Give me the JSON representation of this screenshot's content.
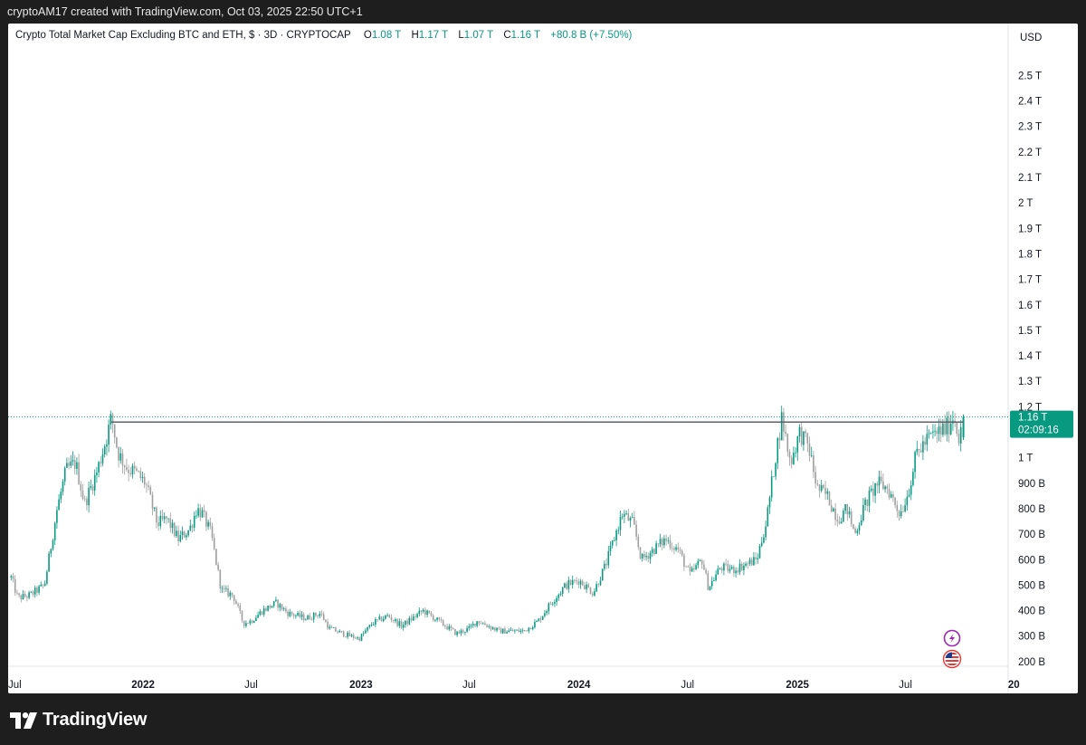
{
  "header": {
    "caption": "cryptoAM17 created with TradingView.com, Oct 03, 2025 22:50 UTC+1"
  },
  "legend": {
    "title": "Crypto Total Market Cap Excluding BTC and ETH, $ · 3D · CRYPTOCAP",
    "o_label": "O",
    "o_value": "1.08 T",
    "h_label": "H",
    "h_value": "1.17 T",
    "l_label": "L",
    "l_value": "1.07 T",
    "c_label": "C",
    "c_value": "1.16 T",
    "change": "+80.8 B (+7.50%)"
  },
  "price_scale": {
    "currency": "USD",
    "ticks": [
      "2.5 T",
      "2.4 T",
      "2.3 T",
      "2.2 T",
      "2.1 T",
      "2 T",
      "1.9 T",
      "1.8 T",
      "1.7 T",
      "1.6 T",
      "1.5 T",
      "1.4 T",
      "1.3 T",
      "1.2 T",
      "1 T",
      "900 B",
      "800 B",
      "700 B",
      "600 B",
      "500 B",
      "400 B",
      "300 B",
      "200 B"
    ],
    "last_price": "1.16 T",
    "countdown": "02:09:16"
  },
  "time_scale": {
    "labels": [
      {
        "text": "Jul",
        "bold": false
      },
      {
        "text": "2022",
        "bold": true
      },
      {
        "text": "Jul",
        "bold": false
      },
      {
        "text": "2023",
        "bold": true
      },
      {
        "text": "Jul",
        "bold": false
      },
      {
        "text": "2024",
        "bold": true
      },
      {
        "text": "Jul",
        "bold": false
      },
      {
        "text": "2025",
        "bold": true
      },
      {
        "text": "Jul",
        "bold": false
      },
      {
        "text": "20",
        "bold": true
      }
    ]
  },
  "colors": {
    "up": "#089981",
    "down": "#9e9e9e",
    "last_price_bg": "#089981",
    "line": "#5d606b"
  },
  "brand": {
    "name": "TradingView"
  },
  "icons": [
    "lightning-icon",
    "us-flag-icon"
  ],
  "chart_data": {
    "type": "candlestick",
    "title": "Crypto Total Market Cap Excluding BTC and ETH, $ · 3D · CRYPTOCAP",
    "ylabel": "USD",
    "y_scale": "linear",
    "ylim": [
      0.18,
      2.56
    ],
    "x_range": [
      "2021-05-20",
      "2025-12-20"
    ],
    "last": {
      "open": 1.08,
      "high": 1.17,
      "low": 1.07,
      "close": 1.16
    },
    "horizontal_line": 1.14,
    "series": [
      {
        "name": "",
        "path": [
          [
            "2021-05-25",
            0.53
          ],
          [
            "2021-06-05",
            0.45
          ],
          [
            "2021-06-25",
            0.46
          ],
          [
            "2021-07-20",
            0.5
          ],
          [
            "2021-08-10",
            0.8
          ],
          [
            "2021-08-25",
            0.95
          ],
          [
            "2021-09-10",
            0.98
          ],
          [
            "2021-09-25",
            0.82
          ],
          [
            "2021-10-15",
            0.94
          ],
          [
            "2021-11-01",
            1.08
          ],
          [
            "2021-11-09",
            1.16
          ],
          [
            "2021-11-20",
            1.02
          ],
          [
            "2021-12-05",
            0.96
          ],
          [
            "2021-12-20",
            0.94
          ],
          [
            "2022-01-05",
            0.9
          ],
          [
            "2022-01-25",
            0.74
          ],
          [
            "2022-02-10",
            0.76
          ],
          [
            "2022-03-01",
            0.68
          ],
          [
            "2022-03-20",
            0.72
          ],
          [
            "2022-04-01",
            0.8
          ],
          [
            "2022-04-10",
            0.78
          ],
          [
            "2022-04-25",
            0.7
          ],
          [
            "2022-05-12",
            0.48
          ],
          [
            "2022-06-01",
            0.46
          ],
          [
            "2022-06-18",
            0.35
          ],
          [
            "2022-07-01",
            0.36
          ],
          [
            "2022-07-20",
            0.4
          ],
          [
            "2022-08-12",
            0.43
          ],
          [
            "2022-09-01",
            0.39
          ],
          [
            "2022-10-01",
            0.37
          ],
          [
            "2022-10-25",
            0.39
          ],
          [
            "2022-11-09",
            0.33
          ],
          [
            "2022-12-01",
            0.31
          ],
          [
            "2022-12-29",
            0.29
          ],
          [
            "2023-01-20",
            0.35
          ],
          [
            "2023-02-15",
            0.38
          ],
          [
            "2023-03-10",
            0.34
          ],
          [
            "2023-04-15",
            0.4
          ],
          [
            "2023-05-10",
            0.36
          ],
          [
            "2023-06-10",
            0.31
          ],
          [
            "2023-07-01",
            0.33
          ],
          [
            "2023-07-15",
            0.36
          ],
          [
            "2023-08-20",
            0.32
          ],
          [
            "2023-10-01",
            0.32
          ],
          [
            "2023-10-25",
            0.36
          ],
          [
            "2023-11-15",
            0.43
          ],
          [
            "2023-12-10",
            0.5
          ],
          [
            "2024-01-01",
            0.52
          ],
          [
            "2024-01-25",
            0.47
          ],
          [
            "2024-02-15",
            0.58
          ],
          [
            "2024-03-05",
            0.72
          ],
          [
            "2024-03-14",
            0.78
          ],
          [
            "2024-04-01",
            0.74
          ],
          [
            "2024-04-15",
            0.6
          ],
          [
            "2024-05-05",
            0.64
          ],
          [
            "2024-05-25",
            0.68
          ],
          [
            "2024-06-15",
            0.64
          ],
          [
            "2024-07-05",
            0.54
          ],
          [
            "2024-07-25",
            0.6
          ],
          [
            "2024-08-05",
            0.49
          ],
          [
            "2024-08-25",
            0.57
          ],
          [
            "2024-09-15",
            0.56
          ],
          [
            "2024-10-05",
            0.58
          ],
          [
            "2024-10-25",
            0.6
          ],
          [
            "2024-11-10",
            0.75
          ],
          [
            "2024-11-25",
            1.0
          ],
          [
            "2024-12-06",
            1.16
          ],
          [
            "2024-12-20",
            0.98
          ],
          [
            "2025-01-05",
            1.1
          ],
          [
            "2025-01-20",
            1.04
          ],
          [
            "2025-02-03",
            0.88
          ],
          [
            "2025-02-20",
            0.85
          ],
          [
            "2025-03-10",
            0.76
          ],
          [
            "2025-03-25",
            0.8
          ],
          [
            "2025-04-07",
            0.7
          ],
          [
            "2025-04-25",
            0.82
          ],
          [
            "2025-05-15",
            0.9
          ],
          [
            "2025-06-01",
            0.88
          ],
          [
            "2025-06-22",
            0.78
          ],
          [
            "2025-07-05",
            0.86
          ],
          [
            "2025-07-20",
            1.02
          ],
          [
            "2025-08-10",
            1.08
          ],
          [
            "2025-08-25",
            1.1
          ],
          [
            "2025-09-10",
            1.12
          ],
          [
            "2025-09-20",
            1.17
          ],
          [
            "2025-09-28",
            1.08
          ],
          [
            "2025-10-03",
            1.16
          ]
        ]
      }
    ]
  }
}
